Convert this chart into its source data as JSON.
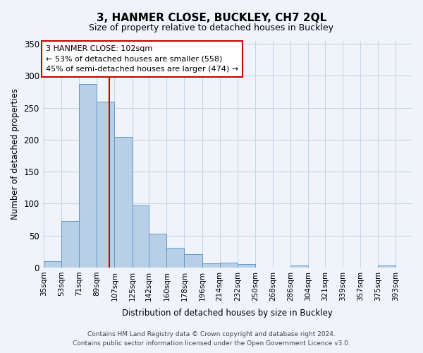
{
  "title": "3, HANMER CLOSE, BUCKLEY, CH7 2QL",
  "subtitle": "Size of property relative to detached houses in Buckley",
  "xlabel": "Distribution of detached houses by size in Buckley",
  "ylabel": "Number of detached properties",
  "bin_labels": [
    "35sqm",
    "53sqm",
    "71sqm",
    "89sqm",
    "107sqm",
    "125sqm",
    "142sqm",
    "160sqm",
    "178sqm",
    "196sqm",
    "214sqm",
    "232sqm",
    "250sqm",
    "268sqm",
    "286sqm",
    "304sqm",
    "321sqm",
    "339sqm",
    "357sqm",
    "375sqm",
    "393sqm"
  ],
  "bin_edges": [
    35,
    53,
    71,
    89,
    107,
    125,
    142,
    160,
    178,
    196,
    214,
    232,
    250,
    268,
    286,
    304,
    321,
    339,
    357,
    375,
    393,
    411
  ],
  "bar_heights": [
    10,
    73,
    287,
    260,
    204,
    97,
    53,
    31,
    21,
    6,
    8,
    5,
    0,
    0,
    3,
    0,
    0,
    0,
    0,
    3,
    0
  ],
  "bar_color": "#b8cfe8",
  "bar_edge_color": "#6399c8",
  "property_value": 102,
  "vline_color": "#cc0000",
  "annotation_title": "3 HANMER CLOSE: 102sqm",
  "annotation_line1": "← 53% of detached houses are smaller (558)",
  "annotation_line2": "45% of semi-detached houses are larger (474) →",
  "annotation_box_color": "#ffffff",
  "annotation_box_edge": "#cc0000",
  "ylim": [
    0,
    355
  ],
  "yticks": [
    0,
    50,
    100,
    150,
    200,
    250,
    300,
    350
  ],
  "background_color": "#f0f4fa",
  "grid_color": "#c8d4e8",
  "footer_line1": "Contains HM Land Registry data © Crown copyright and database right 2024.",
  "footer_line2": "Contains public sector information licensed under the Open Government Licence v3.0."
}
